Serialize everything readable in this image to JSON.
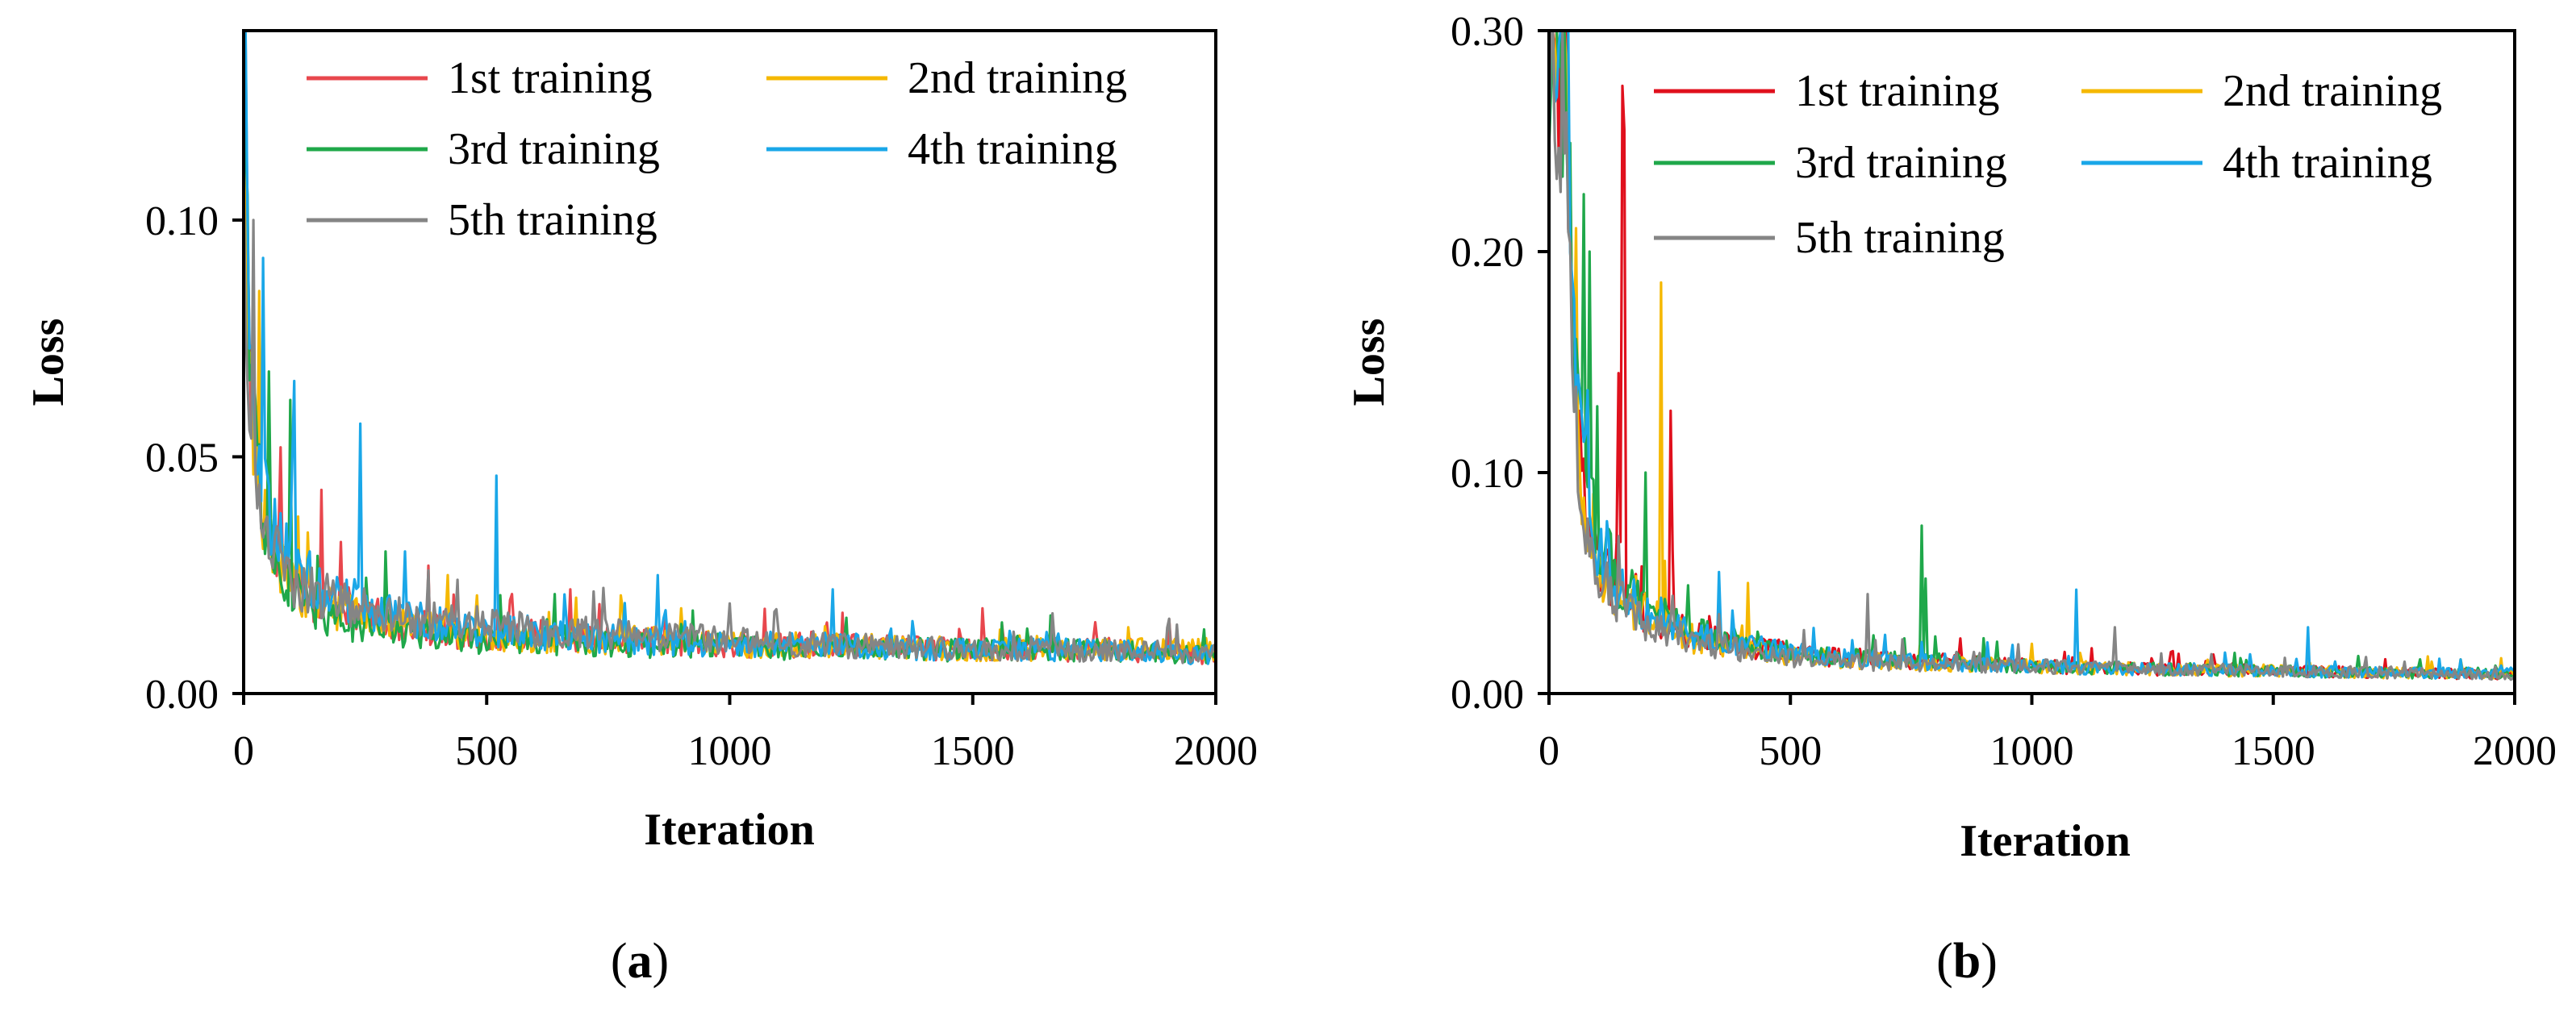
{
  "chart_data": [
    {
      "panel_label_prefix": "(",
      "panel_label": "a",
      "panel_label_suffix": ")",
      "type": "line",
      "xlabel": "Iteration",
      "ylabel": "Loss",
      "xlim": [
        0,
        2000
      ],
      "ylim": [
        0,
        0.14
      ],
      "x_ticks": [
        0,
        500,
        1000,
        1500,
        2000
      ],
      "x_tick_labels": [
        "0",
        "500",
        "1000",
        "1500",
        "2000"
      ],
      "y_ticks": [
        0,
        0.05,
        0.1
      ],
      "y_tick_labels": [
        "0.00",
        "0.05",
        "0.10"
      ],
      "grid": false,
      "legend_placement": "top-right",
      "series": [
        {
          "name": "1st training",
          "color": "#e8474d",
          "x": [
            0,
            5,
            10,
            15,
            25,
            40,
            60,
            80,
            100,
            130,
            160,
            200,
            250,
            300,
            400,
            500,
            600,
            800,
            1000,
            1200,
            1500,
            1800,
            2000
          ],
          "y": [
            0.14,
            0.11,
            0.085,
            0.07,
            0.055,
            0.04,
            0.032,
            0.027,
            0.024,
            0.021,
            0.019,
            0.018,
            0.016,
            0.015,
            0.013,
            0.012,
            0.012,
            0.011,
            0.01,
            0.01,
            0.009,
            0.009,
            0.008
          ],
          "spikes": [
            [
              75,
              0.052
            ],
            [
              160,
              0.043
            ],
            [
              200,
              0.032
            ],
            [
              380,
              0.027
            ],
            [
              550,
              0.021
            ],
            [
              670,
              0.022
            ],
            [
              1200,
              0.015
            ],
            [
              1520,
              0.018
            ]
          ]
        },
        {
          "name": "2nd training",
          "color": "#f5b800",
          "x": [
            0,
            5,
            10,
            15,
            25,
            40,
            60,
            80,
            100,
            130,
            160,
            200,
            250,
            300,
            400,
            500,
            600,
            800,
            1000,
            1200,
            1500,
            1800,
            2000
          ],
          "y": [
            0.13,
            0.1,
            0.08,
            0.062,
            0.048,
            0.037,
            0.03,
            0.026,
            0.023,
            0.02,
            0.018,
            0.017,
            0.015,
            0.014,
            0.013,
            0.012,
            0.011,
            0.011,
            0.01,
            0.01,
            0.009,
            0.009,
            0.009
          ],
          "spikes": [
            [
              30,
              0.085
            ],
            [
              130,
              0.034
            ],
            [
              420,
              0.025
            ],
            [
              900,
              0.018
            ],
            [
              1820,
              0.014
            ]
          ]
        },
        {
          "name": "3rd training",
          "color": "#1fa84a",
          "x": [
            0,
            5,
            10,
            15,
            25,
            40,
            60,
            80,
            100,
            130,
            160,
            200,
            250,
            300,
            400,
            500,
            600,
            800,
            1000,
            1200,
            1500,
            1800,
            2000
          ],
          "y": [
            0.135,
            0.105,
            0.08,
            0.064,
            0.05,
            0.038,
            0.03,
            0.025,
            0.021,
            0.018,
            0.016,
            0.015,
            0.014,
            0.013,
            0.012,
            0.011,
            0.011,
            0.01,
            0.01,
            0.009,
            0.009,
            0.009,
            0.008
          ],
          "spikes": [
            [
              50,
              0.068
            ],
            [
              95,
              0.062
            ],
            [
              290,
              0.03
            ],
            [
              640,
              0.021
            ],
            [
              1240,
              0.016
            ],
            [
              1560,
              0.015
            ]
          ]
        },
        {
          "name": "4th training",
          "color": "#1aa7e8",
          "x": [
            0,
            5,
            10,
            15,
            25,
            40,
            60,
            80,
            100,
            130,
            160,
            200,
            250,
            300,
            400,
            500,
            600,
            800,
            1000,
            1200,
            1500,
            1800,
            2000
          ],
          "y": [
            0.14,
            0.112,
            0.09,
            0.073,
            0.057,
            0.043,
            0.035,
            0.03,
            0.027,
            0.024,
            0.022,
            0.02,
            0.018,
            0.016,
            0.014,
            0.013,
            0.012,
            0.011,
            0.01,
            0.01,
            0.009,
            0.009,
            0.008
          ],
          "spikes": [
            [
              40,
              0.092
            ],
            [
              105,
              0.066
            ],
            [
              240,
              0.057
            ],
            [
              330,
              0.03
            ],
            [
              520,
              0.046
            ],
            [
              850,
              0.025
            ],
            [
              1210,
              0.022
            ],
            [
              1650,
              0.013
            ]
          ]
        },
        {
          "name": "5th training",
          "color": "#858585",
          "x": [
            0,
            5,
            10,
            15,
            25,
            40,
            60,
            80,
            100,
            130,
            160,
            200,
            250,
            300,
            400,
            500,
            600,
            800,
            1000,
            1200,
            1500,
            1800,
            2000
          ],
          "y": [
            0.1,
            0.085,
            0.07,
            0.058,
            0.046,
            0.037,
            0.031,
            0.027,
            0.024,
            0.021,
            0.02,
            0.019,
            0.017,
            0.016,
            0.015,
            0.014,
            0.013,
            0.012,
            0.011,
            0.01,
            0.009,
            0.009,
            0.008
          ],
          "spikes": [
            [
              20,
              0.1
            ],
            [
              380,
              0.026
            ],
            [
              1000,
              0.019
            ]
          ]
        }
      ]
    },
    {
      "panel_label_prefix": "(",
      "panel_label": "b",
      "panel_label_suffix": ")",
      "type": "line",
      "xlabel": "Iteration",
      "ylabel": "Loss",
      "xlim": [
        0,
        2000
      ],
      "ylim": [
        0,
        0.3
      ],
      "x_ticks": [
        0,
        500,
        1000,
        1500,
        2000
      ],
      "x_tick_labels": [
        "0",
        "500",
        "1000",
        "1500",
        "2000"
      ],
      "y_ticks": [
        0,
        0.1,
        0.2,
        0.3
      ],
      "y_tick_labels": [
        "0.00",
        "0.10",
        "0.20",
        "0.30"
      ],
      "grid": false,
      "legend_placement": "top-right",
      "series": [
        {
          "name": "1st training",
          "color": "#e0101d",
          "x": [
            0,
            30,
            40,
            50,
            60,
            80,
            100,
            130,
            160,
            200,
            250,
            300,
            400,
            500,
            600,
            800,
            1000,
            1200,
            1500,
            1800,
            2000
          ],
          "y": [
            0.3,
            0.3,
            0.26,
            0.18,
            0.13,
            0.08,
            0.06,
            0.048,
            0.04,
            0.035,
            0.03,
            0.025,
            0.021,
            0.018,
            0.016,
            0.014,
            0.012,
            0.011,
            0.01,
            0.009,
            0.008
          ],
          "spikes": [
            [
              145,
              0.145
            ],
            [
              150,
              0.275
            ],
            [
              155,
              0.255
            ],
            [
              250,
              0.128
            ],
            [
              255,
              0.065
            ],
            [
              330,
              0.035
            ],
            [
              900,
              0.016
            ]
          ]
        },
        {
          "name": "2nd training",
          "color": "#f5b800",
          "x": [
            0,
            30,
            40,
            50,
            60,
            80,
            100,
            130,
            160,
            200,
            250,
            300,
            400,
            500,
            600,
            800,
            1000,
            1200,
            1500,
            1800,
            2000
          ],
          "y": [
            0.3,
            0.28,
            0.22,
            0.15,
            0.11,
            0.075,
            0.058,
            0.047,
            0.04,
            0.035,
            0.029,
            0.024,
            0.02,
            0.017,
            0.015,
            0.013,
            0.012,
            0.011,
            0.01,
            0.009,
            0.009
          ],
          "spikes": [
            [
              230,
              0.186
            ],
            [
              240,
              0.06
            ],
            [
              410,
              0.05
            ],
            [
              1400,
              0.015
            ]
          ]
        },
        {
          "name": "3rd training",
          "color": "#1fa84a",
          "x": [
            0,
            30,
            40,
            50,
            60,
            80,
            100,
            130,
            160,
            200,
            250,
            300,
            400,
            500,
            600,
            800,
            1000,
            1200,
            1500,
            1800,
            2000
          ],
          "y": [
            0.3,
            0.29,
            0.24,
            0.17,
            0.12,
            0.09,
            0.07,
            0.055,
            0.045,
            0.038,
            0.032,
            0.027,
            0.022,
            0.018,
            0.016,
            0.014,
            0.012,
            0.011,
            0.01,
            0.009,
            0.009
          ],
          "spikes": [
            [
              70,
              0.226
            ],
            [
              85,
              0.2
            ],
            [
              100,
              0.13
            ],
            [
              200,
              0.1
            ],
            [
              770,
              0.076
            ],
            [
              780,
              0.052
            ],
            [
              900,
              0.025
            ]
          ]
        },
        {
          "name": "4th training",
          "color": "#1aa7e8",
          "x": [
            0,
            30,
            40,
            50,
            60,
            80,
            100,
            130,
            160,
            200,
            250,
            300,
            400,
            500,
            600,
            800,
            1000,
            1200,
            1500,
            1800,
            2000
          ],
          "y": [
            0.3,
            0.3,
            0.27,
            0.2,
            0.14,
            0.09,
            0.068,
            0.052,
            0.043,
            0.036,
            0.03,
            0.026,
            0.021,
            0.018,
            0.016,
            0.014,
            0.012,
            0.011,
            0.01,
            0.009,
            0.009
          ],
          "spikes": [
            [
              120,
              0.078
            ],
            [
              350,
              0.055
            ],
            [
              1090,
              0.047
            ],
            [
              1570,
              0.03
            ]
          ]
        },
        {
          "name": "5th training",
          "color": "#858585",
          "x": [
            0,
            30,
            40,
            50,
            60,
            80,
            100,
            130,
            160,
            200,
            250,
            300,
            400,
            500,
            600,
            800,
            1000,
            1200,
            1500,
            1800,
            2000
          ],
          "y": [
            0.3,
            0.27,
            0.2,
            0.13,
            0.1,
            0.07,
            0.055,
            0.045,
            0.038,
            0.032,
            0.027,
            0.023,
            0.019,
            0.016,
            0.014,
            0.013,
            0.012,
            0.011,
            0.01,
            0.009,
            0.008
          ],
          "spikes": [
            [
              660,
              0.045
            ],
            [
              1170,
              0.03
            ]
          ]
        }
      ]
    }
  ]
}
